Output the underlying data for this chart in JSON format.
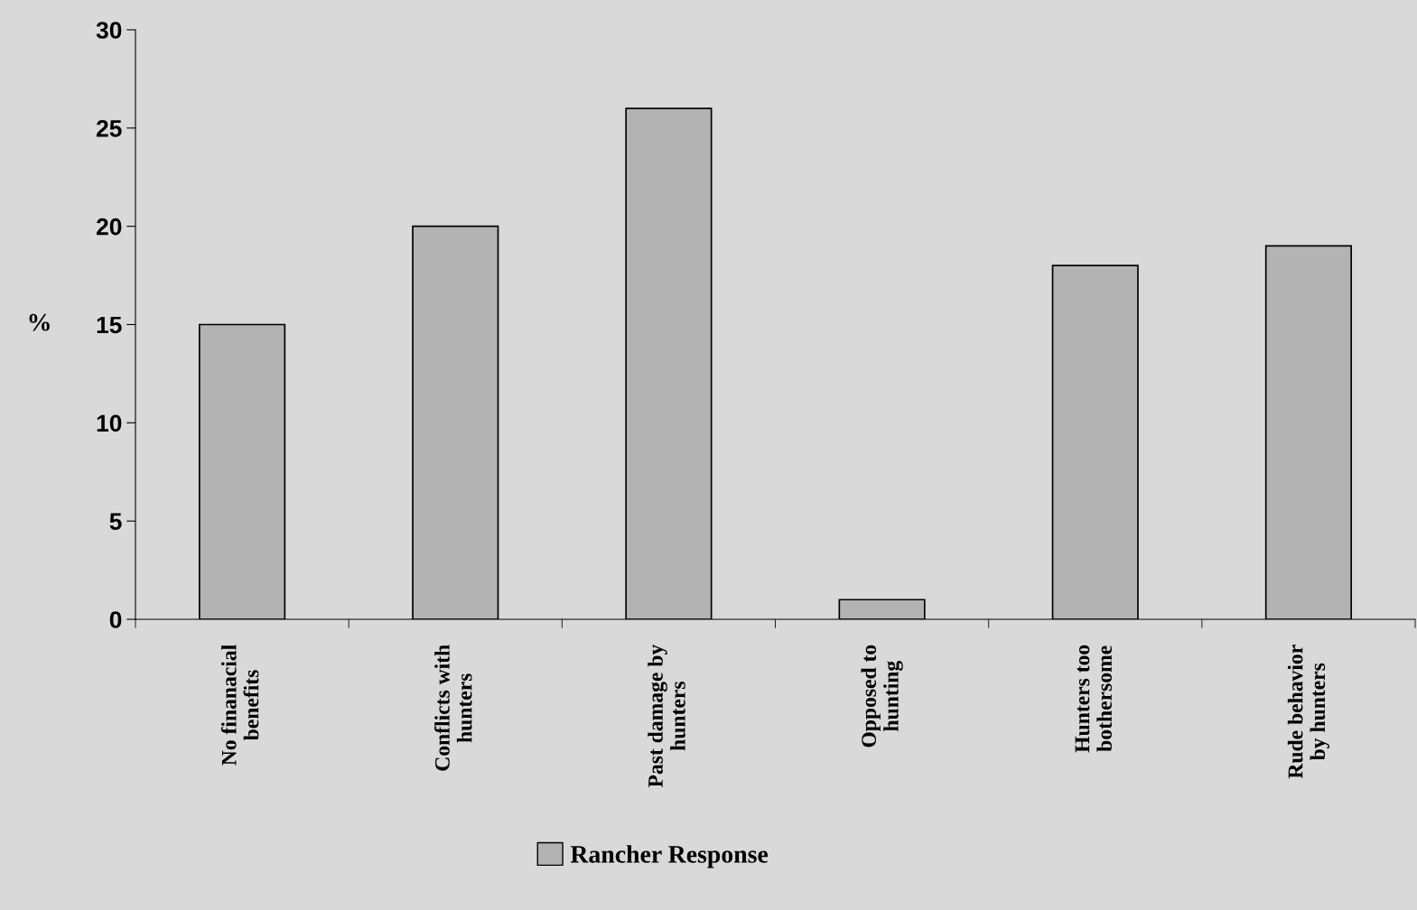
{
  "chart_data": {
    "type": "bar",
    "ylabel": "%",
    "categories": [
      "No finanacial\nbenefits",
      "Conflicts with\nhunters",
      "Past damage by\nhunters",
      "Opposed to\nhunting",
      "Hunters too\nbothersome",
      "Rude behavior\nby hunters"
    ],
    "series": [
      {
        "name": "Rancher Response",
        "color": "#b3b3b3",
        "values": [
          15,
          20,
          26,
          1,
          18,
          19
        ]
      }
    ],
    "ylim": [
      0,
      30
    ],
    "yticks": [
      0,
      5,
      10,
      15,
      20,
      25,
      30
    ],
    "grid": false,
    "legend": "bottom"
  }
}
